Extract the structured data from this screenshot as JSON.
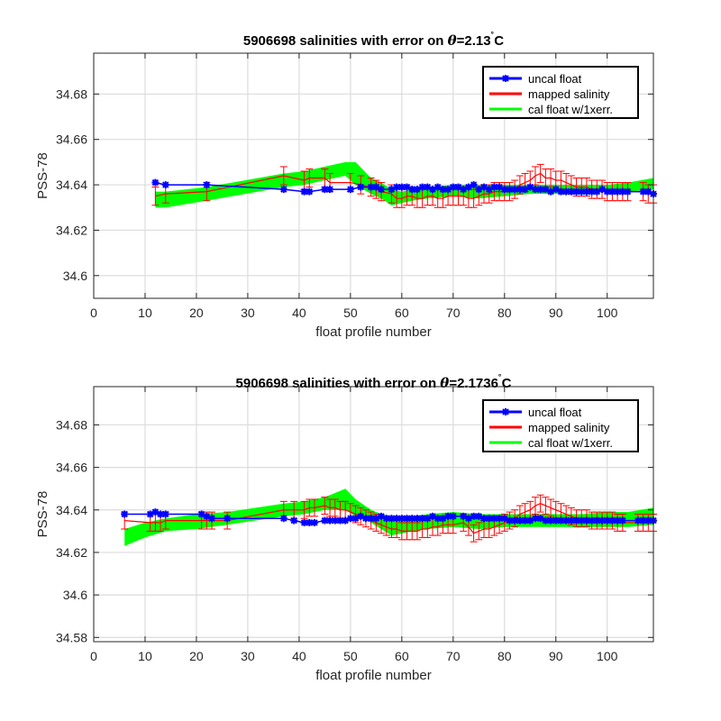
{
  "chart_data": [
    {
      "type": "line",
      "title": "5906698 salinities with error on θ=2.13˚C",
      "title_parts": {
        "prefix": "5906698 salinities with error on ",
        "theta": "θ",
        "value": "=2.13",
        "deg": "˚",
        "unit": "C"
      },
      "xlabel": "float profile number",
      "ylabel": "PSS-78",
      "xlim": [
        0,
        109
      ],
      "ylim": [
        34.59,
        34.698
      ],
      "xticks": [
        0,
        10,
        20,
        30,
        40,
        50,
        60,
        70,
        80,
        90,
        100
      ],
      "xtick_labels": [
        "0",
        "10",
        "20",
        "30",
        "40",
        "50",
        "60",
        "70",
        "80",
        "90",
        "100"
      ],
      "yticks": [
        34.6,
        34.62,
        34.64,
        34.66,
        34.68
      ],
      "ytick_labels": [
        "34.6",
        "34.62",
        "34.64",
        "34.66",
        "34.68"
      ],
      "grid": true,
      "legend_position": "top-right",
      "legend": [
        "uncal float",
        "mapped salinity",
        "cal float w/1xerr."
      ],
      "series": [
        {
          "name": "uncal float",
          "color": "#0000ff",
          "x": [
            12,
            14,
            22,
            37,
            41,
            42,
            45,
            46,
            50,
            52,
            54,
            55,
            56,
            58,
            59,
            60,
            61,
            62,
            63,
            64,
            65,
            66,
            67,
            68,
            69,
            70,
            71,
            72,
            73,
            74,
            75,
            76,
            77,
            78,
            79,
            80,
            81,
            82,
            83,
            84,
            85,
            86,
            87,
            88,
            89,
            90,
            91,
            92,
            93,
            94,
            95,
            96,
            97,
            98,
            99,
            100,
            101,
            102,
            103,
            104,
            107,
            108,
            109
          ],
          "values": [
            34.641,
            34.64,
            34.64,
            34.638,
            34.637,
            34.637,
            34.638,
            34.638,
            34.638,
            34.639,
            34.639,
            34.639,
            34.638,
            34.638,
            34.639,
            34.639,
            34.639,
            34.638,
            34.638,
            34.639,
            34.639,
            34.638,
            34.639,
            34.638,
            34.638,
            34.639,
            34.639,
            34.638,
            34.639,
            34.64,
            34.638,
            34.639,
            34.638,
            34.639,
            34.639,
            34.638,
            34.638,
            34.638,
            34.638,
            34.638,
            34.639,
            34.638,
            34.638,
            34.638,
            34.637,
            34.638,
            34.637,
            34.637,
            34.637,
            34.637,
            34.637,
            34.637,
            34.637,
            34.637,
            34.638,
            34.637,
            34.637,
            34.637,
            34.637,
            34.637,
            34.637,
            34.637,
            34.636
          ]
        },
        {
          "name": "mapped salinity",
          "color": "#ff0000",
          "x": [
            12,
            14,
            22,
            37,
            41,
            42,
            45,
            46,
            50,
            52,
            54,
            55,
            56,
            58,
            59,
            60,
            61,
            62,
            63,
            64,
            65,
            66,
            67,
            68,
            69,
            70,
            71,
            72,
            73,
            74,
            75,
            76,
            77,
            78,
            79,
            80,
            81,
            82,
            83,
            84,
            85,
            86,
            87,
            88,
            89,
            90,
            91,
            92,
            93,
            94,
            95,
            96,
            97,
            98,
            99,
            100,
            101,
            102,
            103,
            104,
            107,
            108,
            109
          ],
          "values": [
            34.635,
            34.636,
            34.637,
            34.644,
            34.642,
            34.643,
            34.643,
            34.641,
            34.641,
            34.64,
            34.639,
            34.638,
            34.637,
            34.636,
            34.634,
            34.634,
            34.635,
            34.635,
            34.634,
            34.634,
            34.635,
            34.635,
            34.634,
            34.634,
            34.635,
            34.635,
            34.635,
            34.635,
            34.634,
            34.634,
            34.635,
            34.636,
            34.636,
            34.637,
            34.637,
            34.637,
            34.637,
            34.638,
            34.64,
            34.641,
            34.642,
            34.644,
            34.645,
            34.643,
            34.643,
            34.642,
            34.642,
            34.641,
            34.64,
            34.639,
            34.639,
            34.639,
            34.638,
            34.638,
            34.638,
            34.637,
            34.637,
            34.637,
            34.637,
            34.637,
            34.637,
            34.636,
            34.636
          ],
          "error": 0.004
        },
        {
          "name": "cal float w/1xerr.",
          "color": "#00ff00",
          "x": [
            12,
            14,
            22,
            37,
            41,
            45,
            49,
            51,
            54,
            56,
            58,
            60,
            62,
            65,
            70,
            75,
            80,
            85,
            90,
            95,
            100,
            104,
            109
          ],
          "lower": [
            34.63,
            34.63,
            34.633,
            34.639,
            34.64,
            34.642,
            34.644,
            34.64,
            34.636,
            34.634,
            34.631,
            34.632,
            34.633,
            34.634,
            34.635,
            34.634,
            34.635,
            34.636,
            34.636,
            34.636,
            34.637,
            34.637,
            34.638
          ],
          "upper": [
            34.637,
            34.637,
            34.639,
            34.645,
            34.646,
            34.648,
            34.65,
            34.65,
            34.643,
            34.641,
            34.638,
            34.637,
            34.638,
            34.639,
            34.64,
            34.64,
            34.64,
            34.64,
            34.64,
            34.64,
            34.64,
            34.641,
            34.643
          ]
        }
      ]
    },
    {
      "type": "line",
      "title": "5906698 salinities with error on θ=2.1736˚C",
      "title_parts": {
        "prefix": "5906698 salinities with error on ",
        "theta": "θ",
        "value": "=2.1736",
        "deg": "˚",
        "unit": "C"
      },
      "xlabel": "float profile number",
      "ylabel": "PSS-78",
      "xlim": [
        0,
        109
      ],
      "ylim": [
        34.578,
        34.698
      ],
      "xticks": [
        0,
        10,
        20,
        30,
        40,
        50,
        60,
        70,
        80,
        90,
        100
      ],
      "xtick_labels": [
        "0",
        "10",
        "20",
        "30",
        "40",
        "50",
        "60",
        "70",
        "80",
        "90",
        "100"
      ],
      "yticks": [
        34.58,
        34.6,
        34.62,
        34.64,
        34.66,
        34.68
      ],
      "ytick_labels": [
        "34.58",
        "34.6",
        "34.62",
        "34.64",
        "34.66",
        "34.68"
      ],
      "grid": true,
      "legend_position": "top-right",
      "legend": [
        "uncal float",
        "mapped salinity",
        "cal float w/1xerr."
      ],
      "series": [
        {
          "name": "uncal float",
          "color": "#0000ff",
          "x": [
            6,
            11,
            12,
            13,
            14,
            21,
            22,
            23,
            26,
            37,
            39,
            41,
            42,
            43,
            45,
            46,
            47,
            48,
            49,
            50,
            51,
            52,
            53,
            54,
            55,
            56,
            57,
            58,
            59,
            60,
            61,
            62,
            63,
            64,
            65,
            66,
            67,
            68,
            69,
            70,
            72,
            73,
            74,
            75,
            76,
            77,
            78,
            79,
            80,
            81,
            82,
            83,
            84,
            85,
            86,
            87,
            88,
            89,
            90,
            91,
            92,
            93,
            94,
            95,
            96,
            97,
            98,
            99,
            100,
            101,
            102,
            103,
            106,
            107,
            108,
            109
          ],
          "values": [
            34.638,
            34.638,
            34.639,
            34.638,
            34.638,
            34.638,
            34.637,
            34.636,
            34.636,
            34.636,
            34.635,
            34.634,
            34.634,
            34.634,
            34.635,
            34.635,
            34.635,
            34.635,
            34.635,
            34.636,
            34.636,
            34.637,
            34.636,
            34.636,
            34.636,
            34.637,
            34.636,
            34.636,
            34.636,
            34.636,
            34.636,
            34.636,
            34.636,
            34.636,
            34.636,
            34.637,
            34.636,
            34.636,
            34.637,
            34.637,
            34.637,
            34.636,
            34.637,
            34.637,
            34.636,
            34.636,
            34.636,
            34.636,
            34.636,
            34.635,
            34.635,
            34.635,
            34.635,
            34.635,
            34.636,
            34.636,
            34.635,
            34.635,
            34.635,
            34.635,
            34.635,
            34.635,
            34.635,
            34.635,
            34.635,
            34.635,
            34.635,
            34.635,
            34.635,
            34.635,
            34.635,
            34.635,
            34.635,
            34.635,
            34.635,
            34.635
          ]
        },
        {
          "name": "mapped salinity",
          "color": "#ff0000",
          "x": [
            6,
            11,
            12,
            13,
            14,
            21,
            22,
            23,
            26,
            37,
            39,
            41,
            42,
            43,
            45,
            46,
            47,
            48,
            49,
            50,
            51,
            52,
            53,
            54,
            55,
            56,
            57,
            58,
            59,
            60,
            61,
            62,
            63,
            64,
            65,
            66,
            67,
            68,
            69,
            70,
            72,
            73,
            74,
            75,
            76,
            77,
            78,
            79,
            80,
            81,
            82,
            83,
            84,
            85,
            86,
            87,
            88,
            89,
            90,
            91,
            92,
            93,
            94,
            95,
            96,
            97,
            98,
            99,
            100,
            101,
            102,
            103,
            106,
            107,
            108,
            109
          ],
          "values": [
            34.635,
            34.634,
            34.634,
            34.634,
            34.635,
            34.635,
            34.635,
            34.635,
            34.635,
            34.64,
            34.64,
            34.64,
            34.641,
            34.641,
            34.642,
            34.641,
            34.641,
            34.64,
            34.64,
            34.639,
            34.638,
            34.637,
            34.636,
            34.635,
            34.634,
            34.633,
            34.632,
            34.631,
            34.631,
            34.63,
            34.63,
            34.63,
            34.63,
            34.631,
            34.631,
            34.632,
            34.632,
            34.633,
            34.633,
            34.633,
            34.634,
            34.632,
            34.629,
            34.63,
            34.631,
            34.631,
            34.632,
            34.633,
            34.634,
            34.635,
            34.636,
            34.638,
            34.639,
            34.64,
            34.642,
            34.643,
            34.642,
            34.641,
            34.64,
            34.639,
            34.638,
            34.637,
            34.636,
            34.636,
            34.636,
            34.635,
            34.635,
            34.635,
            34.635,
            34.635,
            34.634,
            34.634,
            34.634,
            34.634,
            34.634,
            34.634
          ],
          "error": 0.004
        },
        {
          "name": "cal float w/1xerr.",
          "color": "#00ff00",
          "x": [
            6,
            10,
            14,
            20,
            26,
            37,
            41,
            45,
            49,
            51,
            54,
            56,
            58,
            60,
            62,
            65,
            70,
            75,
            80,
            85,
            90,
            95,
            100,
            104,
            109
          ],
          "lower": [
            34.623,
            34.627,
            34.63,
            34.631,
            34.633,
            34.637,
            34.638,
            34.64,
            34.64,
            34.637,
            34.634,
            34.631,
            34.628,
            34.629,
            34.63,
            34.631,
            34.632,
            34.631,
            34.632,
            34.632,
            34.632,
            34.632,
            34.632,
            34.632,
            34.633
          ],
          "upper": [
            34.631,
            34.634,
            34.636,
            34.638,
            34.639,
            34.643,
            34.644,
            34.646,
            34.65,
            34.645,
            34.64,
            34.638,
            34.637,
            34.637,
            34.637,
            34.638,
            34.639,
            34.638,
            34.638,
            34.638,
            34.638,
            34.638,
            34.639,
            34.639,
            34.641
          ]
        }
      ]
    }
  ]
}
